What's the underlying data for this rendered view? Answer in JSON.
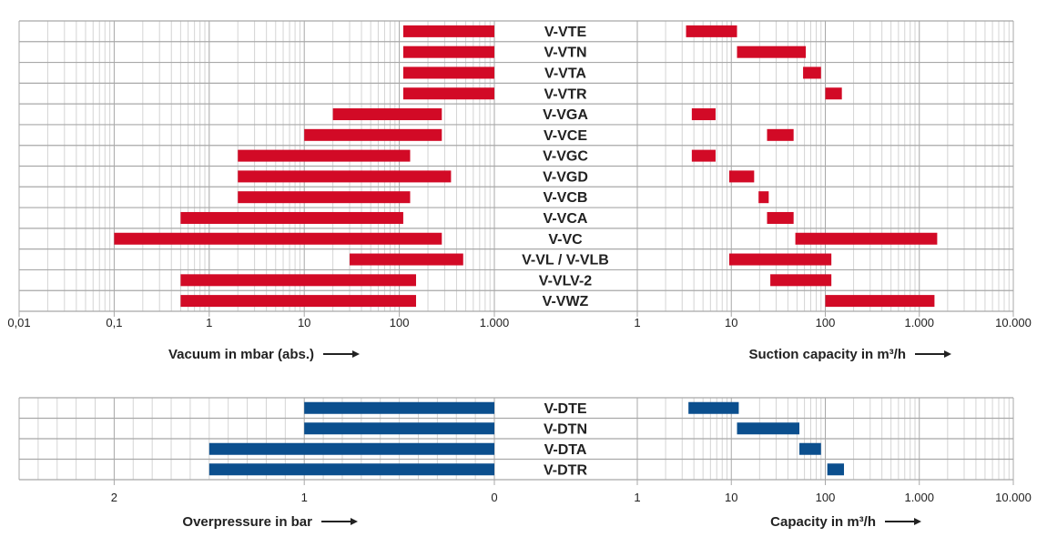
{
  "colors": {
    "vacuum": "#d20a26",
    "pressure": "#0b4f8e",
    "grid_major": "#a8a8a8",
    "grid_minor": "#d4d4d4"
  },
  "chart_data": [
    {
      "type": "bar",
      "subtype": "floating-range",
      "panel": "vacuum",
      "categories": [
        "V-VTE",
        "V-VTN",
        "V-VTA",
        "V-VTR",
        "V-VGA",
        "V-VCE",
        "V-VGC",
        "V-VGD",
        "V-VCB",
        "V-VCA",
        "V-VC",
        "V-VL / V-VLB",
        "V-VLV-2",
        "V-VWZ"
      ],
      "left_axis": {
        "xlabel": "Vacuum in mbar (abs.)",
        "scale": "log",
        "xlim": [
          0.01,
          1000
        ],
        "ticks": [
          0.01,
          0.1,
          1,
          10,
          100,
          1000
        ],
        "tick_labels": [
          "0,01",
          "0,1",
          "1",
          "10",
          "100",
          "1.000"
        ],
        "ranges": [
          [
            110,
            1000
          ],
          [
            110,
            1000
          ],
          [
            110,
            1000
          ],
          [
            110,
            1000
          ],
          [
            20,
            280
          ],
          [
            10,
            280
          ],
          [
            2,
            130
          ],
          [
            2,
            350
          ],
          [
            2,
            130
          ],
          [
            0.5,
            110
          ],
          [
            0.1,
            280
          ],
          [
            30,
            470
          ],
          [
            0.5,
            150
          ],
          [
            0.5,
            150
          ]
        ]
      },
      "right_axis": {
        "xlabel": "Suction capacity in m³/h",
        "scale": "log",
        "xlim": [
          1,
          10000
        ],
        "ticks": [
          1,
          10,
          100,
          1000,
          10000
        ],
        "tick_labels": [
          "1",
          "10",
          "100",
          "1.000",
          "10.000"
        ],
        "ranges": [
          [
            3.3,
            11.5
          ],
          [
            11.5,
            62
          ],
          [
            58,
            90
          ],
          [
            100,
            150
          ],
          [
            3.8,
            6.8
          ],
          [
            24,
            46
          ],
          [
            3.8,
            6.8
          ],
          [
            9.5,
            17.5
          ],
          [
            19.5,
            25
          ],
          [
            24,
            46
          ],
          [
            48,
            1550
          ],
          [
            9.5,
            116
          ],
          [
            26,
            116
          ],
          [
            100,
            1450
          ]
        ]
      }
    },
    {
      "type": "bar",
      "subtype": "floating-range",
      "panel": "pressure",
      "categories": [
        "V-DTE",
        "V-DTN",
        "V-DTA",
        "V-DTR"
      ],
      "left_axis": {
        "xlabel": "Overpressure in bar",
        "scale": "linear-reversed",
        "xlim": [
          2.5,
          0
        ],
        "ticks": [
          2,
          1,
          0
        ],
        "tick_labels": [
          "2",
          "1",
          "0"
        ],
        "ranges": [
          [
            1,
            0
          ],
          [
            1,
            0
          ],
          [
            1.5,
            0
          ],
          [
            1.5,
            0
          ]
        ]
      },
      "right_axis": {
        "xlabel": "Capacity in m³/h",
        "scale": "log",
        "xlim": [
          1,
          10000
        ],
        "ticks": [
          1,
          10,
          100,
          1000,
          10000
        ],
        "tick_labels": [
          "1",
          "10",
          "100",
          "1.000",
          "10.000"
        ],
        "ranges": [
          [
            3.5,
            12
          ],
          [
            11.5,
            53
          ],
          [
            53,
            90
          ],
          [
            105,
            158
          ]
        ]
      }
    }
  ]
}
